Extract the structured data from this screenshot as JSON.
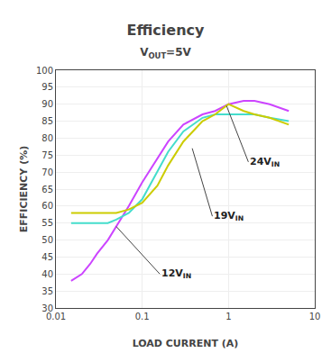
{
  "chart_data": {
    "type": "line",
    "title": "Efficiency",
    "subtitle": {
      "text": "V",
      "sub": "OUT",
      "after": "=5V"
    },
    "xlabel": "LOAD CURRENT (A)",
    "ylabel": "EFFICIENCY (%)",
    "log": "x",
    "grid": true,
    "xlim": [
      0.01,
      10
    ],
    "xticks": [
      0.01,
      0.1,
      1,
      10
    ],
    "ylim": [
      30,
      100
    ],
    "yticks": [
      30,
      35,
      40,
      45,
      50,
      55,
      60,
      65,
      70,
      75,
      80,
      85,
      90,
      95,
      100
    ],
    "x": [
      0.015,
      0.02,
      0.025,
      0.03,
      0.04,
      0.05,
      0.07,
      0.1,
      0.15,
      0.2,
      0.3,
      0.5,
      0.7,
      1.0,
      1.5,
      2.0,
      3.0,
      5.0
    ],
    "series": [
      {
        "color": "#cc44ff",
        "values": [
          38,
          40,
          43,
          46,
          50,
          54,
          60,
          67,
          74,
          79,
          84,
          87,
          88,
          90,
          91,
          91,
          90,
          88
        ]
      },
      {
        "color": "#44ddcc",
        "values": [
          55,
          55,
          55,
          55,
          55,
          56,
          58,
          62,
          70,
          76,
          82,
          86,
          87,
          87,
          87,
          87,
          86,
          85
        ]
      },
      {
        "color": "#cccc00",
        "values": [
          58,
          58,
          58,
          58,
          58,
          58,
          59,
          61,
          66,
          72,
          79,
          85,
          87,
          90,
          88,
          87,
          86,
          84
        ]
      }
    ],
    "annotations": [
      {
        "text": "12V",
        "sub": "IN",
        "x": 0.16,
        "y": 40,
        "tip_x": 0.05,
        "tip_y": 54
      },
      {
        "text": "19V",
        "sub": "IN",
        "x": 0.65,
        "y": 57,
        "tip_x": 0.38,
        "tip_y": 77
      },
      {
        "text": "24V",
        "sub": "IN",
        "x": 1.7,
        "y": 73,
        "tip_x": 0.95,
        "tip_y": 89.5
      }
    ]
  }
}
